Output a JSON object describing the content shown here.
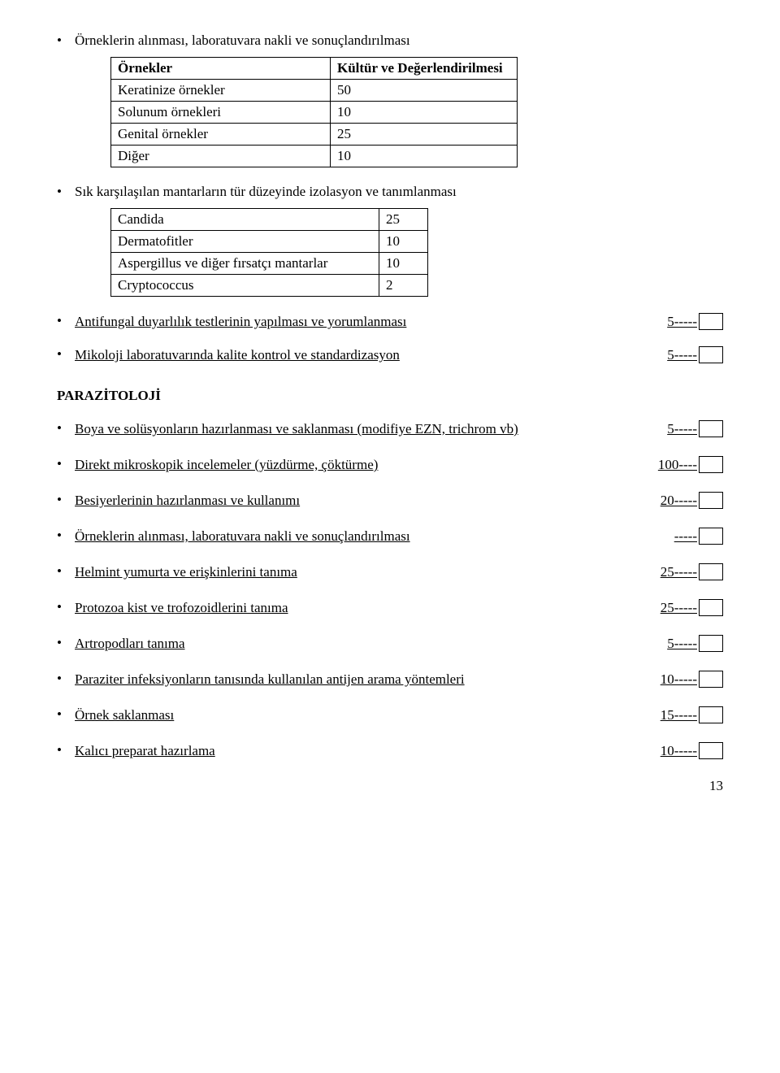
{
  "section1": {
    "title": "Örneklerin alınması, laboratuvara nakli ve sonuçlandırılması",
    "table": {
      "headers": [
        "Örnekler",
        "Kültür ve Değerlendirilmesi"
      ],
      "rows": [
        [
          "Keratinize örnekler",
          "50"
        ],
        [
          "Solunum örnekleri",
          "10"
        ],
        [
          "Genital örnekler",
          "25"
        ],
        [
          "Diğer",
          "10"
        ]
      ]
    }
  },
  "section2": {
    "title": "Sık karşılaşılan mantarların tür düzeyinde izolasyon ve tanımlanması",
    "table": {
      "rows": [
        [
          "Candida",
          "25"
        ],
        [
          "Dermatofitler",
          "10"
        ],
        [
          "Aspergillus ve diğer fırsatçı mantarlar",
          "10"
        ],
        [
          "Cryptococcus",
          "2"
        ]
      ]
    }
  },
  "checkitems": [
    {
      "label": "Antifungal duyarlılık testlerinin yapılması ve yorumlanması",
      "value": "5-----"
    },
    {
      "label": "Mikoloji laboratuvarında kalite kontrol ve standardizasyon",
      "value": "5-----"
    }
  ],
  "paraz": {
    "heading": "PARAZİTOLOJİ",
    "items": [
      {
        "label": "Boya ve solüsyonların hazırlanması ve saklanması (modifiye EZN, trichrom vb)",
        "value": "5-----"
      },
      {
        "label": "Direkt mikroskopik incelemeler (yüzdürme, çöktürme)",
        "value": "100----"
      },
      {
        "label": "Besiyerlerinin hazırlanması  ve kullanımı",
        "value": "20-----"
      },
      {
        "label": "Örneklerin alınması, laboratuvara nakli ve sonuçlandırılması",
        "value": "-----"
      },
      {
        "label": "Helmint yumurta  ve erişkinlerini tanıma",
        "value": "25-----"
      },
      {
        "label": "Protozoa kist ve trofozoidlerini tanıma",
        "value": "25-----"
      },
      {
        "label": "Artropodları tanıma",
        "value": "5-----"
      },
      {
        "label": "Paraziter infeksiyonların tanısında kullanılan antijen arama yöntemleri",
        "value": "10-----"
      },
      {
        "label": "Örnek saklanması",
        "value": "15-----"
      },
      {
        "label": "Kalıcı preparat hazırlama",
        "value": "10-----"
      }
    ]
  },
  "page_number": "13"
}
